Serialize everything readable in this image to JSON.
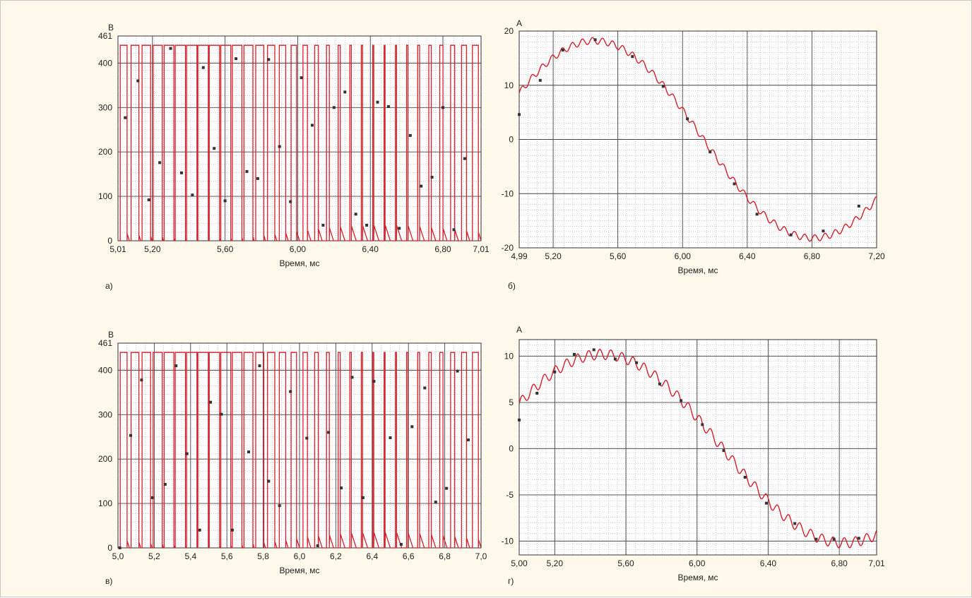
{
  "colors": {
    "trace": "#d91e2a",
    "marker": "#333333",
    "grid_major": "#444444",
    "grid_minor": "#aaaaaa",
    "background": "#fff9ec"
  },
  "chart_data": [
    {
      "id": "a",
      "type": "line",
      "panel_label": "а)",
      "unit": "В",
      "xlabel": "Время, мс",
      "xlim": [
        5.01,
        7.01
      ],
      "ylim": [
        0,
        461
      ],
      "x_ticks": [
        "5,01",
        "5,20",
        "5,60",
        "6,00",
        "6,40",
        "6,80",
        "7,01"
      ],
      "y_ticks": [
        "0",
        "100",
        "200",
        "300",
        "400",
        "461"
      ],
      "grid": true,
      "series": [
        {
          "shape": "pwm",
          "period_ms": 0.0625,
          "amplitude": 440,
          "trail_amplitude": 420
        },
        {
          "shape": "markers",
          "x": [
            5.05,
            5.12,
            5.18,
            5.24,
            5.3,
            5.36,
            5.42,
            5.48,
            5.54,
            5.6,
            5.66,
            5.72,
            5.78,
            5.84,
            5.9,
            5.96,
            6.02,
            6.08,
            6.14,
            6.2,
            6.26,
            6.32,
            6.38,
            6.44,
            6.5,
            6.56,
            6.62,
            6.68,
            6.74,
            6.8,
            6.86,
            6.92
          ],
          "y": [
            277,
            360,
            92,
            176,
            433,
            153,
            103,
            390,
            208,
            90,
            410,
            156,
            140,
            408,
            212,
            88,
            367,
            260,
            35,
            300,
            335,
            60,
            35,
            312,
            302,
            28,
            237,
            123,
            143,
            300,
            25,
            185
          ]
        }
      ]
    },
    {
      "id": "b",
      "type": "line",
      "panel_label": "б)",
      "unit": "А",
      "xlabel": "Время, мс",
      "xlim": [
        4.99,
        7.2
      ],
      "ylim": [
        -20,
        20
      ],
      "x_ticks": [
        "4,99",
        "5,20",
        "5,60",
        "6,00",
        "6,40",
        "6,80",
        "7,20"
      ],
      "y_ticks": [
        "-20",
        "-10",
        "0",
        "10",
        "20"
      ],
      "grid": true,
      "series": [
        {
          "shape": "rippled-sine",
          "amplitude": 18.2,
          "period_ms": 2.7,
          "peak_at_ms": 5.455,
          "ripple_amplitude": 0.6,
          "ripple_period_ms": 0.0625
        },
        {
          "shape": "markers",
          "x": [
            4.99,
            5.12,
            5.26,
            5.46,
            5.69,
            5.88,
            6.03,
            6.17,
            6.32,
            6.46,
            6.67,
            6.87,
            7.09
          ],
          "y": [
            4.6,
            10.9,
            16.5,
            18.4,
            15.3,
            9.8,
            3.8,
            -2.3,
            -8.2,
            -13.8,
            -17.6,
            -16.9,
            -12.3
          ]
        }
      ]
    },
    {
      "id": "v",
      "type": "line",
      "panel_label": "в)",
      "unit": "В",
      "xlabel": "Время, мс",
      "xlim": [
        5.0,
        7.0
      ],
      "ylim": [
        0,
        461
      ],
      "x_ticks": [
        "5,0",
        "5,2",
        "5,4",
        "5,6",
        "5,8",
        "6,0",
        "6,2",
        "6,4",
        "6,6",
        "6,8",
        "7,0"
      ],
      "y_ticks": [
        "0",
        "100",
        "200",
        "300",
        "400",
        "461"
      ],
      "grid": true,
      "series": [
        {
          "shape": "pwm",
          "period_ms": 0.0625,
          "amplitude": 440,
          "trail_amplitude": 420
        },
        {
          "shape": "markers",
          "x": [
            5.01,
            5.07,
            5.13,
            5.19,
            5.26,
            5.32,
            5.38,
            5.45,
            5.51,
            5.57,
            5.63,
            5.72,
            5.78,
            5.83,
            5.89,
            5.95,
            6.04,
            6.1,
            6.16,
            6.23,
            6.29,
            6.35,
            6.41,
            6.5,
            6.56,
            6.62,
            6.69,
            6.75,
            6.81,
            6.87,
            6.93
          ],
          "y": [
            0,
            253,
            378,
            113,
            143,
            410,
            212,
            40,
            328,
            301,
            40,
            216,
            410,
            150,
            95,
            352,
            247,
            5,
            260,
            135,
            384,
            113,
            375,
            248,
            8,
            273,
            360,
            103,
            134,
            398,
            243
          ]
        }
      ]
    },
    {
      "id": "g",
      "type": "line",
      "panel_label": "г)",
      "unit": "А",
      "xlabel": "Время, мс",
      "xlim": [
        5.0,
        7.01
      ],
      "ylim": [
        -11.5,
        11.8
      ],
      "x_ticks": [
        "5,00",
        "5,20",
        "5,60",
        "6,00",
        "6,40",
        "6,80",
        "7,01"
      ],
      "y_ticks": [
        "-10",
        "-5",
        "0",
        "5",
        "10"
      ],
      "grid": true,
      "series": [
        {
          "shape": "rippled-sine",
          "amplitude": 10.2,
          "period_ms": 2.72,
          "peak_at_ms": 5.465,
          "ripple_amplitude": 0.55,
          "ripple_period_ms": 0.0625
        },
        {
          "shape": "markers",
          "x": [
            5.0,
            5.1,
            5.2,
            5.31,
            5.42,
            5.54,
            5.66,
            5.79,
            5.91,
            6.03,
            6.15,
            6.27,
            6.39,
            6.55,
            6.67,
            6.77,
            6.91
          ],
          "y": [
            3.1,
            6.0,
            8.3,
            10.2,
            10.7,
            9.7,
            9.3,
            7.0,
            5.2,
            2.6,
            -0.2,
            -3.1,
            -5.9,
            -8.1,
            -9.8,
            -9.8,
            -9.7
          ]
        }
      ]
    }
  ]
}
